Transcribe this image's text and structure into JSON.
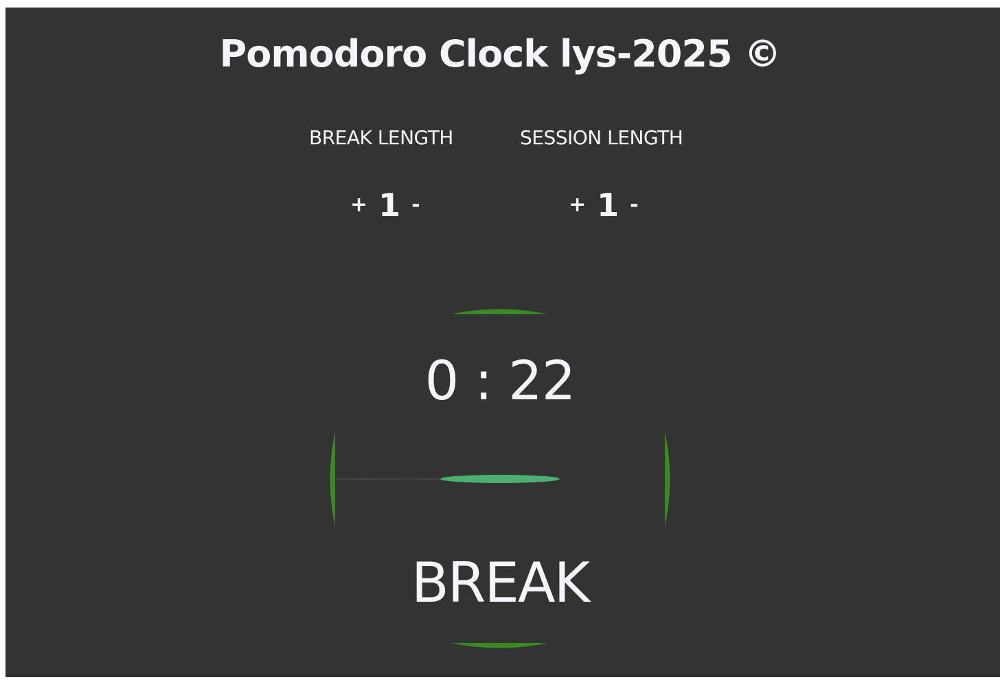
{
  "header": {
    "title": "Pomodoro Clock lys-2025 ©"
  },
  "break": {
    "label": "BREAK LENGTH",
    "increment": "+",
    "value": "1",
    "decrement": "-"
  },
  "session": {
    "label": "SESSION LENGTH",
    "increment": "+",
    "value": "1",
    "decrement": "-"
  },
  "timer": {
    "display": "0 : 22",
    "mode": "BREAK",
    "ring_color": "#3a8a22",
    "progress_color": "#4caf72"
  }
}
